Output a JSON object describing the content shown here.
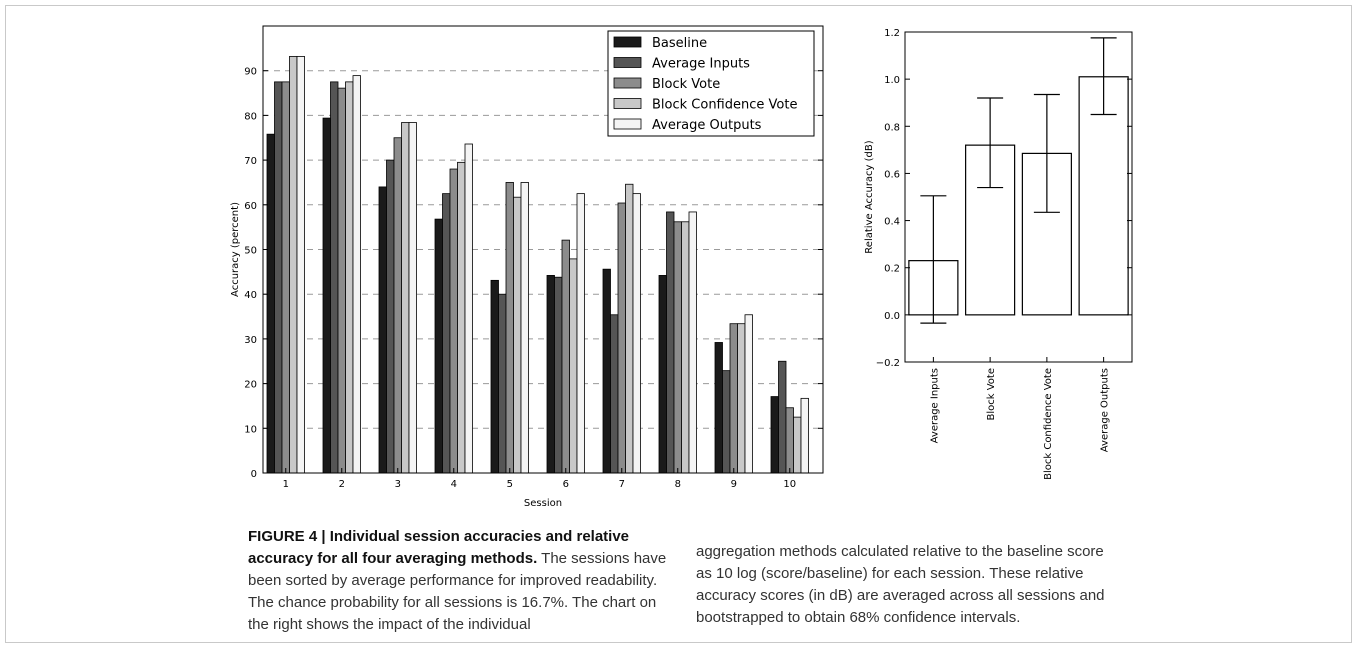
{
  "chart_data": [
    {
      "type": "bar",
      "xlabel": "Session",
      "ylabel": "Accuracy (percent)",
      "ylim": [
        0,
        100
      ],
      "yticks": [
        0,
        10,
        20,
        30,
        40,
        50,
        60,
        70,
        80,
        90
      ],
      "grid": "horizontal dashed",
      "legend_position": "top-right",
      "categories": [
        "1",
        "2",
        "3",
        "4",
        "5",
        "6",
        "7",
        "8",
        "9",
        "10"
      ],
      "series": [
        {
          "name": "Baseline",
          "color": "#1a1a1a",
          "values": [
            75.8,
            79.4,
            64.0,
            56.8,
            43.1,
            44.2,
            45.6,
            44.2,
            29.2,
            17.1
          ]
        },
        {
          "name": "Average Inputs",
          "color": "#555555",
          "values": [
            87.5,
            87.5,
            70.0,
            62.5,
            40.0,
            43.8,
            35.4,
            58.4,
            22.9,
            25.0
          ]
        },
        {
          "name": "Block Vote",
          "color": "#8c8c8c",
          "values": [
            87.5,
            86.1,
            75.0,
            68.0,
            65.0,
            52.1,
            60.4,
            56.2,
            33.4,
            14.6
          ]
        },
        {
          "name": "Block Confidence Vote",
          "color": "#c8c8c8",
          "values": [
            93.2,
            87.5,
            78.4,
            69.5,
            61.7,
            47.9,
            64.6,
            56.2,
            33.4,
            12.5
          ]
        },
        {
          "name": "Average Outputs",
          "color": "#f4f4f4",
          "values": [
            93.2,
            88.9,
            78.4,
            73.6,
            65.0,
            62.5,
            62.5,
            58.4,
            35.4,
            16.7
          ]
        }
      ]
    },
    {
      "type": "bar",
      "ylabel": "Relative Accuracy (dB)",
      "ylim": [
        -0.2,
        1.2
      ],
      "yticks": [
        -0.2,
        0.0,
        0.2,
        0.4,
        0.6,
        0.8,
        1.0,
        1.2
      ],
      "ytick_labels": [
        "−0.2",
        "0.0",
        "0.2",
        "0.4",
        "0.6",
        "0.8",
        "1.0",
        "1.2"
      ],
      "categories": [
        "Average Inputs",
        "Block Vote",
        "Block Confidence Vote",
        "Average Outputs"
      ],
      "values": [
        0.23,
        0.72,
        0.685,
        1.01
      ],
      "error_low": [
        -0.035,
        0.54,
        0.435,
        0.85
      ],
      "error_high": [
        0.505,
        0.92,
        0.935,
        1.175
      ]
    }
  ],
  "caption": {
    "label": "FIGURE 4 | Individual session accuracies and relative accuracy for all four averaging methods.",
    "text_left": "The sessions have been sorted by average performance for improved readability. The chance probability for all sessions is 16.7%. The chart on the right shows the impact of the individual",
    "text_right": "aggregation methods calculated relative to the baseline score as 10 log (score/baseline) for each session. These relative accuracy scores (in dB) are averaged across all sessions and bootstrapped to obtain 68% confidence intervals."
  }
}
